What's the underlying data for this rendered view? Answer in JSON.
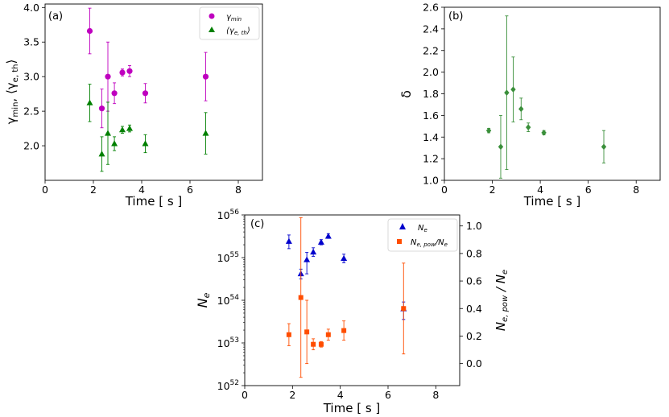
{
  "chart_data": [
    {
      "type": "scatter",
      "panel_label": "(a)",
      "xlabel": "Time [ s ]",
      "ylabel": "γmin, ⟨γe,th⟩",
      "xlim": [
        0,
        9
      ],
      "ylim": [
        1.5,
        4.05
      ],
      "xticks": [
        0,
        2,
        4,
        6,
        8
      ],
      "yticks": [
        2.0,
        2.5,
        3.0,
        3.5,
        4.0
      ],
      "ytick_labels": [
        "2.0",
        "2.5",
        "3.0",
        "3.5",
        "4.0"
      ],
      "legend": {
        "position": "top-right",
        "entries": [
          "γmin",
          "⟨γe,th⟩"
        ]
      },
      "series": [
        {
          "name": "γmin",
          "marker": "circle",
          "color": "#bf00bf",
          "x": [
            1.85,
            2.35,
            2.6,
            2.87,
            3.2,
            3.5,
            4.15,
            6.65
          ],
          "y": [
            3.66,
            2.54,
            3.0,
            2.76,
            3.06,
            3.08,
            2.76,
            3.0
          ],
          "err": [
            0.33,
            0.28,
            0.5,
            0.15,
            0.05,
            0.08,
            0.14,
            0.35
          ]
        },
        {
          "name": "⟨γe,th⟩",
          "marker": "triangle",
          "color": "#008000",
          "x": [
            1.85,
            2.35,
            2.6,
            2.87,
            3.2,
            3.5,
            4.15,
            6.65
          ],
          "y": [
            2.62,
            1.88,
            2.18,
            2.03,
            2.23,
            2.25,
            2.03,
            2.18
          ],
          "err": [
            0.27,
            0.25,
            0.45,
            0.1,
            0.05,
            0.05,
            0.13,
            0.3
          ]
        }
      ]
    },
    {
      "type": "scatter",
      "panel_label": "(b)",
      "xlabel": "Time [ s ]",
      "ylabel": "δ",
      "xlim": [
        0,
        9
      ],
      "ylim": [
        1.0,
        2.6
      ],
      "xticks": [
        0,
        2,
        4,
        6,
        8
      ],
      "yticks": [
        1.0,
        1.2,
        1.4,
        1.6,
        1.8,
        2.0,
        2.2,
        2.4,
        2.6
      ],
      "ytick_labels": [
        "1.0",
        "1.2",
        "1.4",
        "1.6",
        "1.8",
        "2.0",
        "2.2",
        "2.4",
        "2.6"
      ],
      "series": [
        {
          "name": "δ",
          "marker": "diamond",
          "color": "#3a8f3a",
          "x": [
            1.85,
            2.35,
            2.6,
            2.87,
            3.2,
            3.5,
            4.15,
            6.65
          ],
          "y": [
            1.46,
            1.31,
            1.81,
            1.84,
            1.66,
            1.49,
            1.44,
            1.31
          ],
          "err": [
            0.02,
            0.29,
            0.71,
            0.3,
            0.1,
            0.04,
            0.02,
            0.15
          ]
        }
      ]
    },
    {
      "type": "scatter",
      "panel_label": "(c)",
      "xlabel": "Time [ s ]",
      "ylabel": "Ne",
      "y2label": "Ne,pow / Ne",
      "xlim": [
        0,
        9
      ],
      "ylim_log10": [
        52,
        56
      ],
      "y2lim": [
        -0.16,
        1.08
      ],
      "xticks": [
        0,
        2,
        4,
        6,
        8
      ],
      "yticks_exp": [
        52,
        53,
        54,
        55,
        56
      ],
      "ytick_base": "10",
      "y2ticks": [
        0.0,
        0.2,
        0.4,
        0.6,
        0.8,
        1.0
      ],
      "y2tick_labels": [
        "0.0",
        "0.2",
        "0.4",
        "0.6",
        "0.8",
        "1.0"
      ],
      "legend": {
        "position": "top-right",
        "entries": [
          "Ne",
          "Ne,pow/Ne"
        ]
      },
      "series": [
        {
          "name": "Ne",
          "axis": "left",
          "marker": "triangle",
          "color": "#0000cc",
          "x": [
            1.85,
            2.35,
            2.6,
            2.87,
            3.2,
            3.5,
            4.15,
            6.65
          ],
          "log10_y": [
            55.38,
            54.62,
            54.95,
            55.13,
            55.36,
            55.5,
            54.98,
            53.8
          ],
          "log10_lo": [
            55.21,
            54.5,
            54.62,
            55.03,
            55.3,
            55.45,
            54.88,
            53.55
          ],
          "log10_hi": [
            55.53,
            54.73,
            55.12,
            55.23,
            55.42,
            55.56,
            55.08,
            53.96
          ]
        },
        {
          "name": "Ne,pow/Ne",
          "axis": "right",
          "marker": "square",
          "color": "#ff4d00",
          "x": [
            1.85,
            2.35,
            2.6,
            2.87,
            3.2,
            3.5,
            4.15,
            6.65
          ],
          "y": [
            0.21,
            0.48,
            0.23,
            0.14,
            0.14,
            0.21,
            0.24,
            0.4
          ],
          "err": [
            0.08,
            0.58,
            0.23,
            0.04,
            0.02,
            0.04,
            0.07,
            0.33
          ]
        }
      ]
    }
  ]
}
